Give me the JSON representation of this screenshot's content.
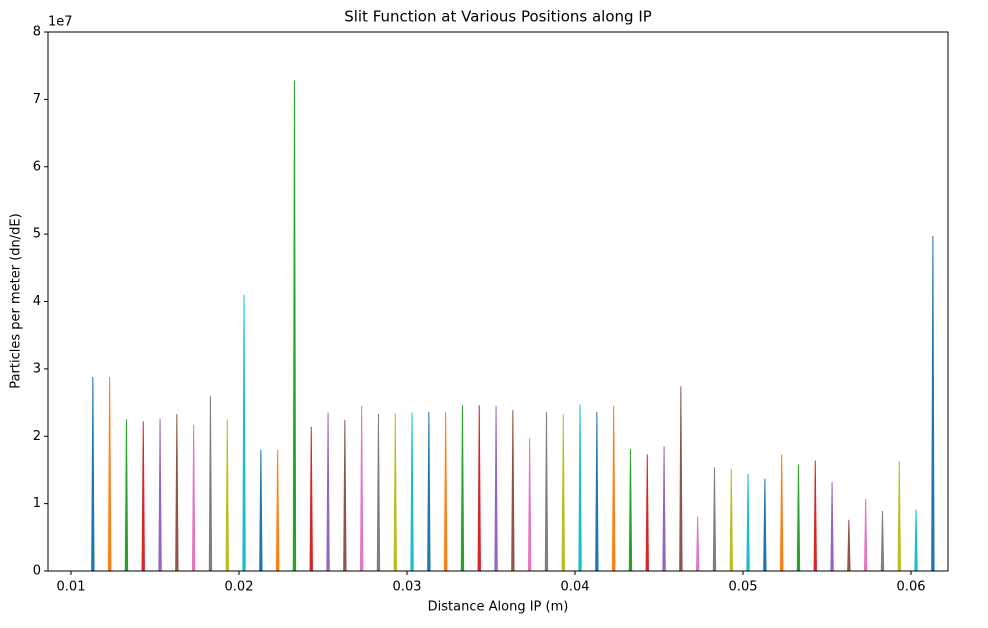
{
  "chart_data": {
    "type": "spike",
    "title": "Slit Function at Various Positions along IP",
    "x_label": "Distance Along IP (m)",
    "y_label": "Particles per meter (dn/dE)",
    "y_offset_label": "1e7",
    "xlim": [
      0.00863,
      0.0622
    ],
    "xticks": [
      0.01,
      0.02,
      0.03,
      0.04,
      0.05,
      0.06
    ],
    "ylim": [
      0,
      80000000
    ],
    "yticks": [
      {
        "value": 0,
        "label": "0"
      },
      {
        "value": 10000000,
        "label": "1"
      },
      {
        "value": 20000000,
        "label": "2"
      },
      {
        "value": 30000000,
        "label": "3"
      },
      {
        "value": 40000000,
        "label": "4"
      },
      {
        "value": 50000000,
        "label": "5"
      },
      {
        "value": 60000000,
        "label": "6"
      },
      {
        "value": 70000000,
        "label": "7"
      },
      {
        "value": 80000000,
        "label": "8"
      }
    ],
    "color_cycle": [
      "#1f77b4",
      "#ff7f0e",
      "#2ca02c",
      "#d62728",
      "#9467bd",
      "#8c564b",
      "#e377c2",
      "#7f7f7f",
      "#bcbd22",
      "#17becf"
    ],
    "x": [
      0.0113,
      0.0123,
      0.0133,
      0.0143,
      0.0153,
      0.0163,
      0.0173,
      0.0183,
      0.0193,
      0.0203,
      0.0213,
      0.0223,
      0.0233,
      0.0243,
      0.0253,
      0.0263,
      0.0273,
      0.0283,
      0.0293,
      0.0303,
      0.0313,
      0.0323,
      0.0333,
      0.0343,
      0.0353,
      0.0363,
      0.0373,
      0.0383,
      0.0393,
      0.0403,
      0.0413,
      0.0423,
      0.0433,
      0.0443,
      0.0453,
      0.0463,
      0.0473,
      0.0483,
      0.0493,
      0.0503,
      0.0513,
      0.0523,
      0.0533,
      0.0543,
      0.0553,
      0.0563,
      0.0573,
      0.0583,
      0.0593,
      0.0603,
      0.0613
    ],
    "values": [
      28800000,
      28800000,
      22500000,
      22200000,
      22600000,
      23300000,
      21700000,
      26000000,
      22500000,
      41000000,
      18000000,
      18000000,
      72800000,
      21400000,
      23500000,
      22400000,
      24500000,
      23300000,
      23400000,
      23500000,
      23600000,
      23600000,
      24600000,
      24600000,
      24500000,
      23900000,
      19700000,
      23600000,
      23300000,
      24700000,
      23600000,
      24500000,
      18100000,
      17300000,
      18500000,
      27400000,
      8100000,
      15400000,
      15200000,
      14400000,
      13700000,
      17300000,
      15800000,
      16400000,
      13200000,
      7600000,
      10700000,
      8900000,
      16300000,
      9100000,
      49700000
    ]
  }
}
